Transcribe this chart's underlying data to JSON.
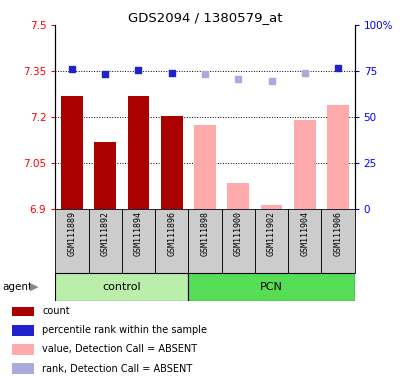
{
  "title": "GDS2094 / 1380579_at",
  "samples": [
    "GSM111889",
    "GSM111892",
    "GSM111894",
    "GSM111896",
    "GSM111898",
    "GSM111900",
    "GSM111902",
    "GSM111904",
    "GSM111906"
  ],
  "bar_values": [
    7.27,
    7.12,
    7.27,
    7.205,
    7.175,
    6.985,
    6.915,
    7.19,
    7.24
  ],
  "bar_colors": [
    "#aa0000",
    "#aa0000",
    "#aa0000",
    "#aa0000",
    "#ffaaaa",
    "#ffaaaa",
    "#ffaaaa",
    "#ffaaaa",
    "#ffaaaa"
  ],
  "dot_values_pct": [
    76.0,
    73.5,
    75.5,
    74.0,
    73.5,
    70.5,
    69.5,
    74.0,
    76.5
  ],
  "dot_colors": [
    "#2222cc",
    "#2222cc",
    "#2222cc",
    "#2222cc",
    "#aaaadd",
    "#aaaadd",
    "#aaaadd",
    "#aaaadd",
    "#2222cc"
  ],
  "ylim_left": [
    6.9,
    7.5
  ],
  "ylim_right": [
    0,
    100
  ],
  "yticks_left": [
    6.9,
    7.05,
    7.2,
    7.35,
    7.5
  ],
  "ytick_labels_left": [
    "6.9",
    "7.05",
    "7.2",
    "7.35",
    "7.5"
  ],
  "yticks_right": [
    0,
    25,
    50,
    75,
    100
  ],
  "ytick_labels_right": [
    "0",
    "25",
    "50",
    "75",
    "100%"
  ],
  "hlines": [
    7.05,
    7.2,
    7.35
  ],
  "control_color": "#bbeeaa",
  "pcn_color": "#55dd55",
  "legend_items": [
    {
      "color": "#aa0000",
      "label": "count"
    },
    {
      "color": "#2222cc",
      "label": "percentile rank within the sample"
    },
    {
      "color": "#ffaaaa",
      "label": "value, Detection Call = ABSENT"
    },
    {
      "color": "#aaaadd",
      "label": "rank, Detection Call = ABSENT"
    }
  ],
  "bar_width": 0.65,
  "n_control": 4,
  "n_pcn": 5
}
